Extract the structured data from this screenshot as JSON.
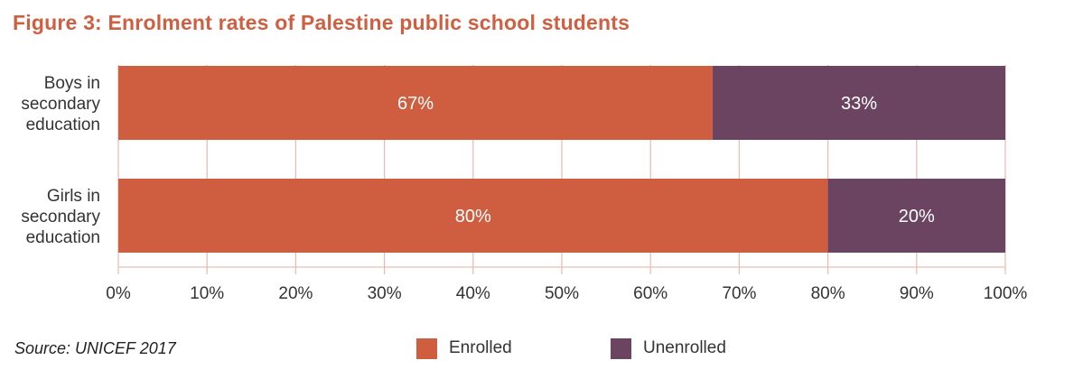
{
  "title": "Figure 3: Enrolment rates of Palestine public school students",
  "source": "Source: UNICEF 2017",
  "colors": {
    "enrolled": "#cf5d40",
    "unenrolled": "#6b4461",
    "grid": "#e6bfb4",
    "text": "#333333"
  },
  "legend": [
    {
      "label": "Enrolled",
      "color": "#cf5d40"
    },
    {
      "label": "Unenrolled",
      "color": "#6b4461"
    }
  ],
  "chart_data": {
    "type": "bar",
    "orientation": "horizontal",
    "stacked": true,
    "categories": [
      [
        "Boys in",
        "secondary",
        "education"
      ],
      [
        "Girls in",
        "secondary",
        "education"
      ]
    ],
    "series": [
      {
        "name": "Enrolled",
        "values": [
          67,
          80
        ],
        "labels": [
          "67%",
          "80%"
        ]
      },
      {
        "name": "Unenrolled",
        "values": [
          33,
          20
        ],
        "labels": [
          "33%",
          "20%"
        ]
      }
    ],
    "xlim": [
      0,
      100
    ],
    "xticks": [
      0,
      10,
      20,
      30,
      40,
      50,
      60,
      70,
      80,
      90,
      100
    ],
    "xtick_labels": [
      "0%",
      "10%",
      "20%",
      "30%",
      "40%",
      "50%",
      "60%",
      "70%",
      "80%",
      "90%",
      "100%"
    ],
    "grid": true,
    "legend_position": "bottom"
  }
}
